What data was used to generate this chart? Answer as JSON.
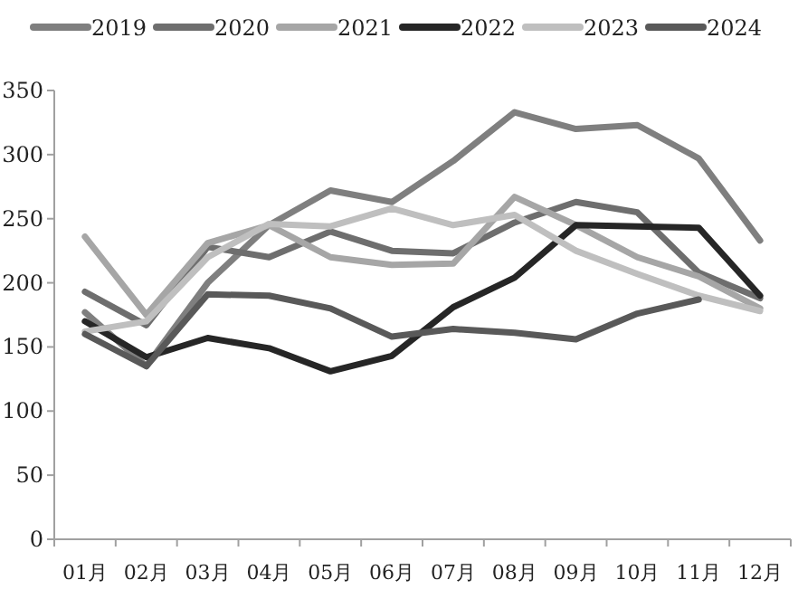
{
  "chart_data": {
    "type": "line",
    "categories": [
      "01月",
      "02月",
      "03月",
      "04月",
      "05月",
      "06月",
      "07月",
      "08月",
      "09月",
      "10月",
      "11月",
      "12月"
    ],
    "ylim": [
      0,
      350
    ],
    "yticks": [
      0,
      50,
      100,
      150,
      200,
      250,
      300,
      350
    ],
    "legend": "top",
    "grid": false,
    "marker": "none",
    "line_style": "solid",
    "series": [
      {
        "name": "2019",
        "color": "#7f7f7f",
        "values": [
          177,
          135,
          200,
          245,
          272,
          263,
          295,
          333,
          320,
          323,
          297,
          233
        ]
      },
      {
        "name": "2020",
        "color": "#6e6e6e",
        "values": [
          193,
          167,
          228,
          220,
          240,
          225,
          223,
          247,
          263,
          255,
          208,
          188
        ]
      },
      {
        "name": "2021",
        "color": "#a6a6a6",
        "values": [
          236,
          175,
          231,
          245,
          220,
          214,
          215,
          267,
          245,
          220,
          205,
          180
        ]
      },
      {
        "name": "2022",
        "color": "#262626",
        "values": [
          170,
          142,
          157,
          149,
          131,
          143,
          181,
          204,
          245,
          244,
          243,
          190
        ]
      },
      {
        "name": "2023",
        "color": "#bfbfbf",
        "values": [
          162,
          170,
          220,
          246,
          244,
          258,
          245,
          253,
          225,
          207,
          190,
          178
        ]
      },
      {
        "name": "2024",
        "color": "#595959",
        "values": [
          160,
          135,
          191,
          190,
          180,
          158,
          164,
          161,
          156,
          176,
          187,
          null
        ]
      }
    ]
  }
}
